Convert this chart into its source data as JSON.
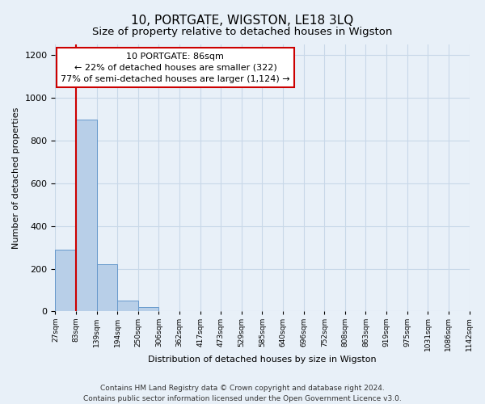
{
  "title": "10, PORTGATE, WIGSTON, LE18 3LQ",
  "subtitle": "Size of property relative to detached houses in Wigston",
  "xlabel": "Distribution of detached houses by size in Wigston",
  "ylabel": "Number of detached properties",
  "bin_labels": [
    "27sqm",
    "83sqm",
    "139sqm",
    "194sqm",
    "250sqm",
    "306sqm",
    "362sqm",
    "417sqm",
    "473sqm",
    "529sqm",
    "585sqm",
    "640sqm",
    "696sqm",
    "752sqm",
    "808sqm",
    "863sqm",
    "919sqm",
    "975sqm",
    "1031sqm",
    "1086sqm",
    "1142sqm"
  ],
  "bar_values": [
    290,
    900,
    220,
    50,
    20,
    0,
    0,
    0,
    0,
    0,
    0,
    0,
    0,
    0,
    0,
    0,
    0,
    0,
    0,
    0
  ],
  "bar_color": "#b8cfe8",
  "bar_edge_color": "#6699cc",
  "vline_color": "#cc0000",
  "annotation_text": "10 PORTGATE: 86sqm\n← 22% of detached houses are smaller (322)\n77% of semi-detached houses are larger (1,124) →",
  "annotation_box_color": "#ffffff",
  "annotation_box_edge_color": "#cc0000",
  "ylim": [
    0,
    1250
  ],
  "yticks": [
    0,
    200,
    400,
    600,
    800,
    1000,
    1200
  ],
  "grid_color": "#c8d8e8",
  "background_color": "#e8f0f8",
  "footer_line1": "Contains HM Land Registry data © Crown copyright and database right 2024.",
  "footer_line2": "Contains public sector information licensed under the Open Government Licence v3.0.",
  "title_fontsize": 11,
  "subtitle_fontsize": 9.5,
  "annotation_fontsize": 8,
  "footer_fontsize": 6.5,
  "xlabel_fontsize": 8,
  "ylabel_fontsize": 8
}
